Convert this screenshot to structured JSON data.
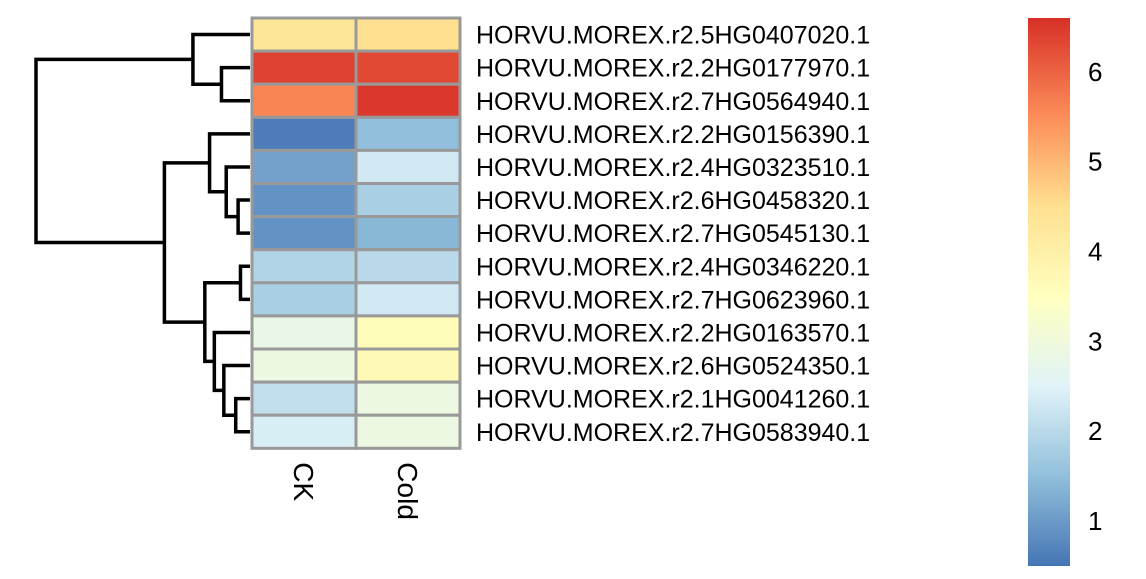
{
  "chart_data": {
    "type": "heatmap",
    "title": "",
    "xlabel": "",
    "ylabel": "",
    "columns": [
      "CK",
      "Cold"
    ],
    "rows": [
      "HORVU.MOREX.r2.5HG0407020.1",
      "HORVU.MOREX.r2.2HG0177970.1",
      "HORVU.MOREX.r2.7HG0564940.1",
      "HORVU.MOREX.r2.2HG0156390.1",
      "HORVU.MOREX.r2.4HG0323510.1",
      "HORVU.MOREX.r2.6HG0458320.1",
      "HORVU.MOREX.r2.7HG0545130.1",
      "HORVU.MOREX.r2.4HG0346220.1",
      "HORVU.MOREX.r2.7HG0623960.1",
      "HORVU.MOREX.r2.2HG0163570.1",
      "HORVU.MOREX.r2.6HG0524350.1",
      "HORVU.MOREX.r2.1HG0041260.1",
      "HORVU.MOREX.r2.7HG0583940.1"
    ],
    "values": [
      [
        4.3,
        4.5
      ],
      [
        6.4,
        6.3
      ],
      [
        5.6,
        6.5
      ],
      [
        0.6,
        1.5
      ],
      [
        1.1,
        2.3
      ],
      [
        0.9,
        1.8
      ],
      [
        0.9,
        1.4
      ],
      [
        1.9,
        2.0
      ],
      [
        1.8,
        2.3
      ],
      [
        2.8,
        3.6
      ],
      [
        2.9,
        3.7
      ],
      [
        2.1,
        2.9
      ],
      [
        2.4,
        2.9
      ]
    ],
    "color_scale": {
      "min": 0.5,
      "max": 6.6,
      "ticks": [
        1,
        2,
        3,
        4,
        5,
        6
      ],
      "stops": [
        {
          "value": 0.5,
          "color": "#4575b4"
        },
        {
          "value": 1.5,
          "color": "#91bfdb"
        },
        {
          "value": 2.5,
          "color": "#e0f3f8"
        },
        {
          "value": 3.5,
          "color": "#ffffbf"
        },
        {
          "value": 4.5,
          "color": "#fee090"
        },
        {
          "value": 5.5,
          "color": "#fc8d59"
        },
        {
          "value": 6.6,
          "color": "#d73027"
        }
      ]
    },
    "cell_border_color": "#999999",
    "dendrogram": {
      "side": "left",
      "merges": [
        [
          1,
          2,
          0.6
        ],
        [
          0,
          "m0",
          1.2
        ],
        [
          5,
          6,
          0.25
        ],
        [
          4,
          "m2",
          0.5
        ],
        [
          3,
          "m3",
          0.85
        ],
        [
          7,
          8,
          0.2
        ],
        [
          11,
          12,
          0.3
        ],
        [
          10,
          "m6",
          0.55
        ],
        [
          9,
          "m7",
          0.75
        ],
        [
          "m5",
          "m8",
          0.95
        ],
        [
          "m4",
          "m9",
          1.8
        ],
        [
          "m1",
          "m10",
          4.5
        ]
      ]
    }
  }
}
